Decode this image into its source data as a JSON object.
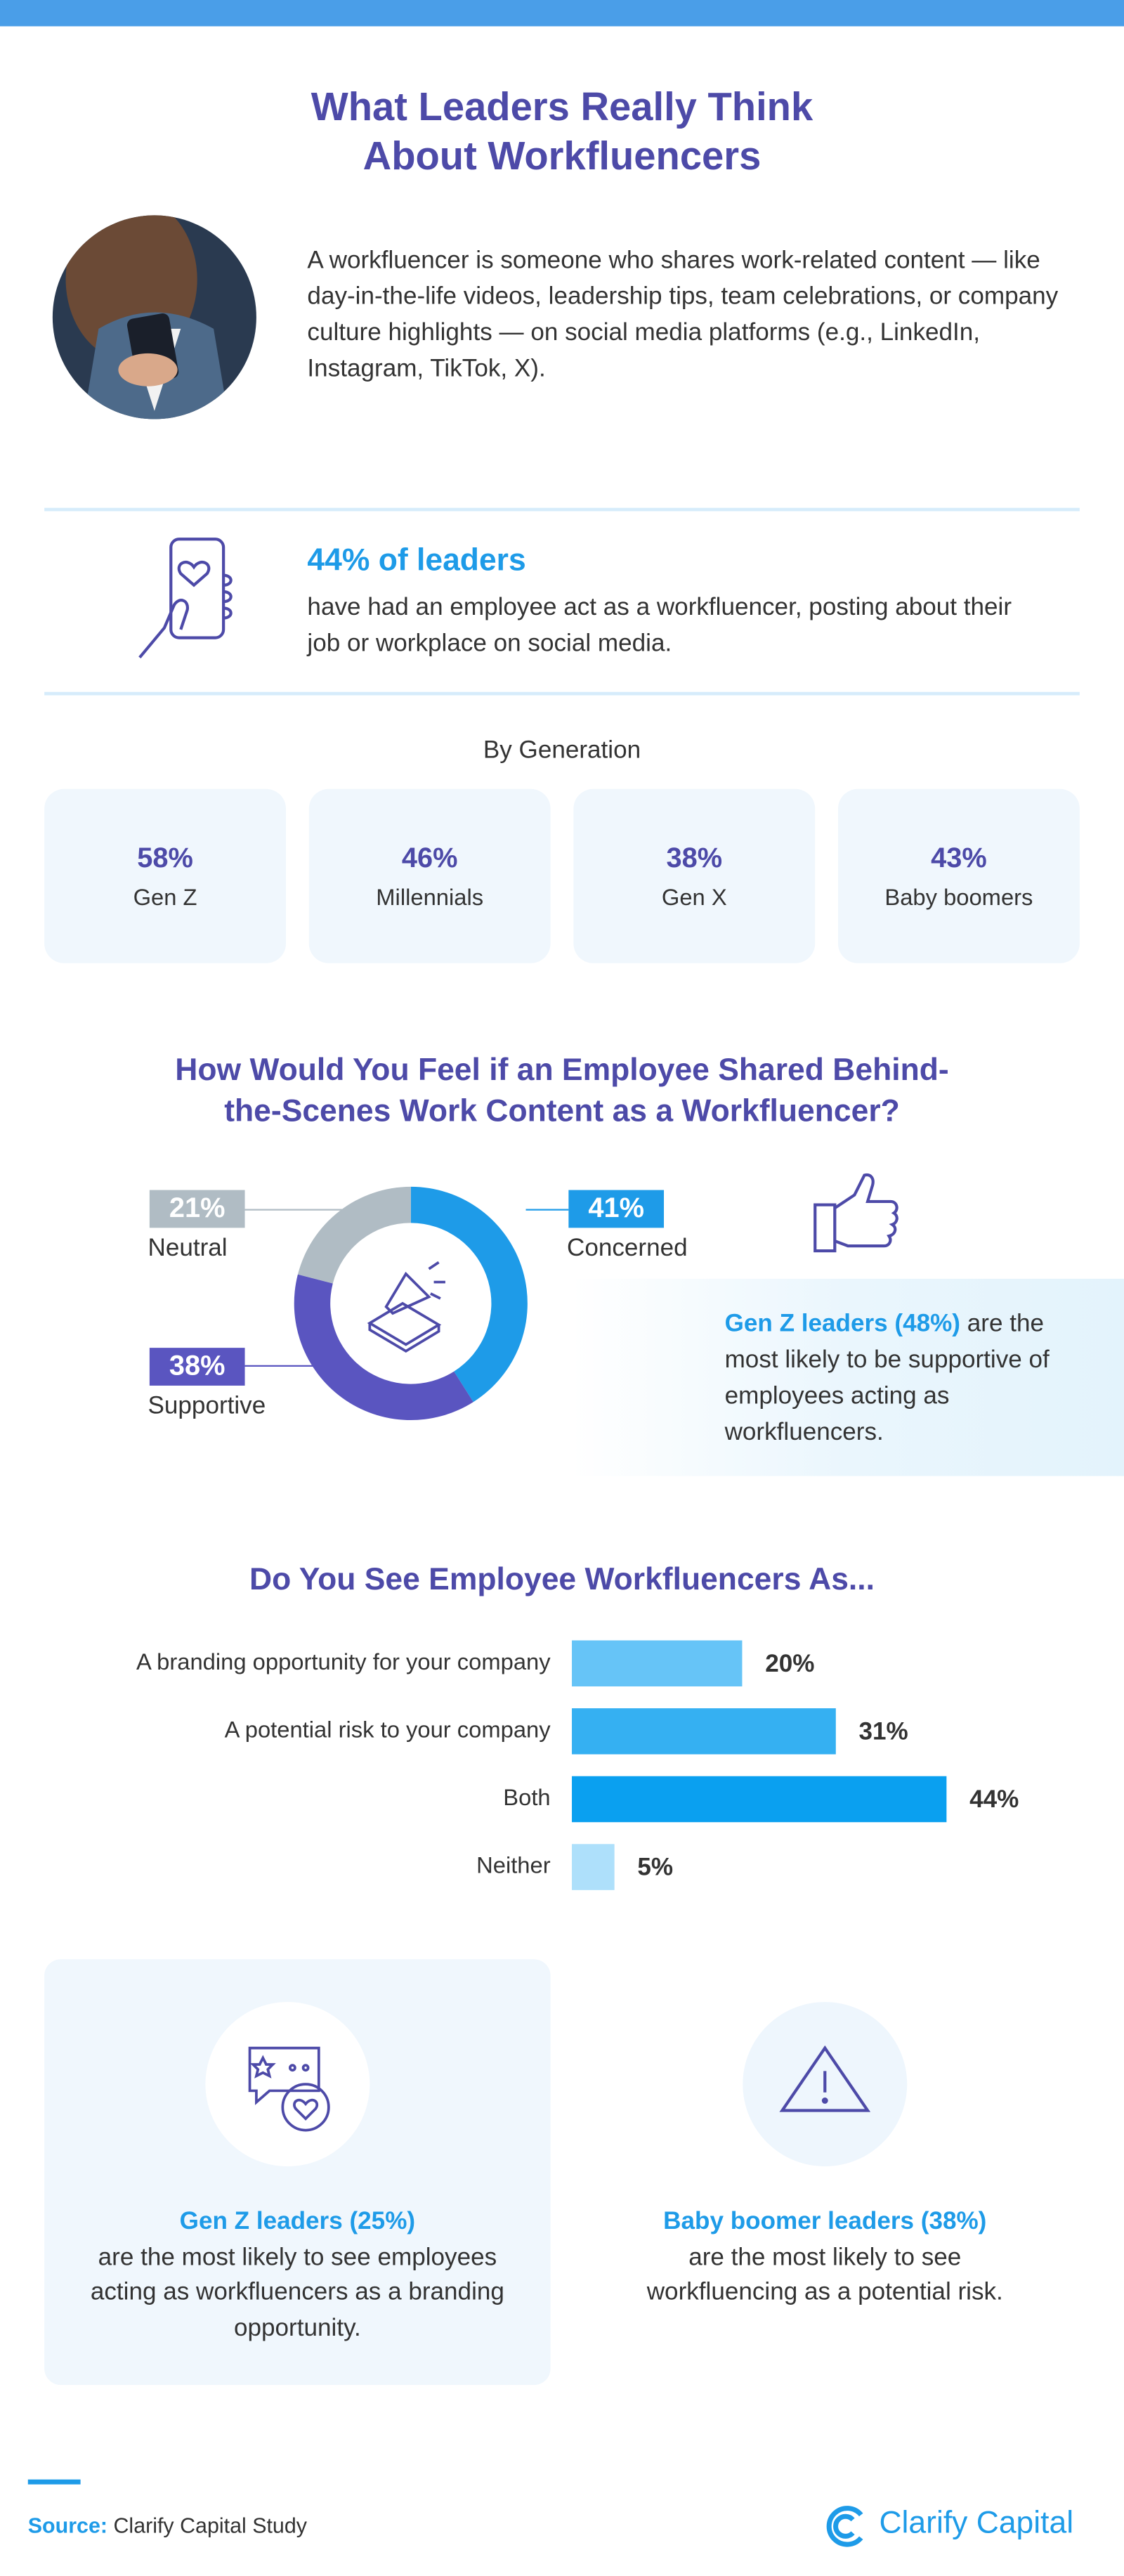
{
  "header": {
    "title": "What Leaders Really Think About Workfluencers",
    "intro": "A workfluencer is someone who shares work-related content — like day-in-the-life videos, leadership tips, team celebrations, or company culture highlights — on social media platforms (e.g., LinkedIn, Instagram, TikTok, X)."
  },
  "stat": {
    "headline": "44% of leaders",
    "text": "have had an employee act as a workfluencer, posting about their job or workplace on social media."
  },
  "generation": {
    "title": "By Generation",
    "cards": [
      {
        "value": "58%",
        "label": "Gen Z"
      },
      {
        "value": "46%",
        "label": "Millennials"
      },
      {
        "value": "38%",
        "label": "Gen X"
      },
      {
        "value": "43%",
        "label": "Baby boomers"
      }
    ]
  },
  "chart_data": [
    {
      "type": "pie",
      "title": "How Would You Feel if an Employee Shared Behind-the-Scenes Work Content as a Workfluencer?",
      "categories": [
        "Concerned",
        "Supportive",
        "Neutral"
      ],
      "values": [
        41,
        38,
        21
      ],
      "value_labels": [
        "41%",
        "38%",
        "21%"
      ],
      "colors": [
        "#1e9be8",
        "#5a55c0",
        "#b0bcc4"
      ]
    },
    {
      "type": "bar",
      "horizontal": true,
      "title": "Do You See Employee Workfluencers As...",
      "categories": [
        "A branding opportunity for your company",
        "A potential risk to your company",
        "Both",
        "Neither"
      ],
      "values": [
        20,
        31,
        44,
        5
      ],
      "value_labels": [
        "20%",
        "31%",
        "44%",
        "5%"
      ],
      "colors": [
        "#66c4f7",
        "#35b0f2",
        "#0aa0f0",
        "#aee0fb"
      ]
    }
  ],
  "callout": {
    "highlight": "Gen Z leaders (48%)",
    "text": "are the most likely to be supportive of employees acting as workfluencers."
  },
  "bottom_cards": [
    {
      "highlight": "Gen Z leaders (25%)",
      "text": "are the most likely to see employees acting as workfluencers as a branding opportunity."
    },
    {
      "highlight": "Baby boomer leaders (38%)",
      "text": "are the most likely to see workfluencing as a potential risk."
    }
  ],
  "footer": {
    "source_label": "Source:",
    "source": "Clarify Capital Study",
    "brand": "Clarify Capital"
  }
}
